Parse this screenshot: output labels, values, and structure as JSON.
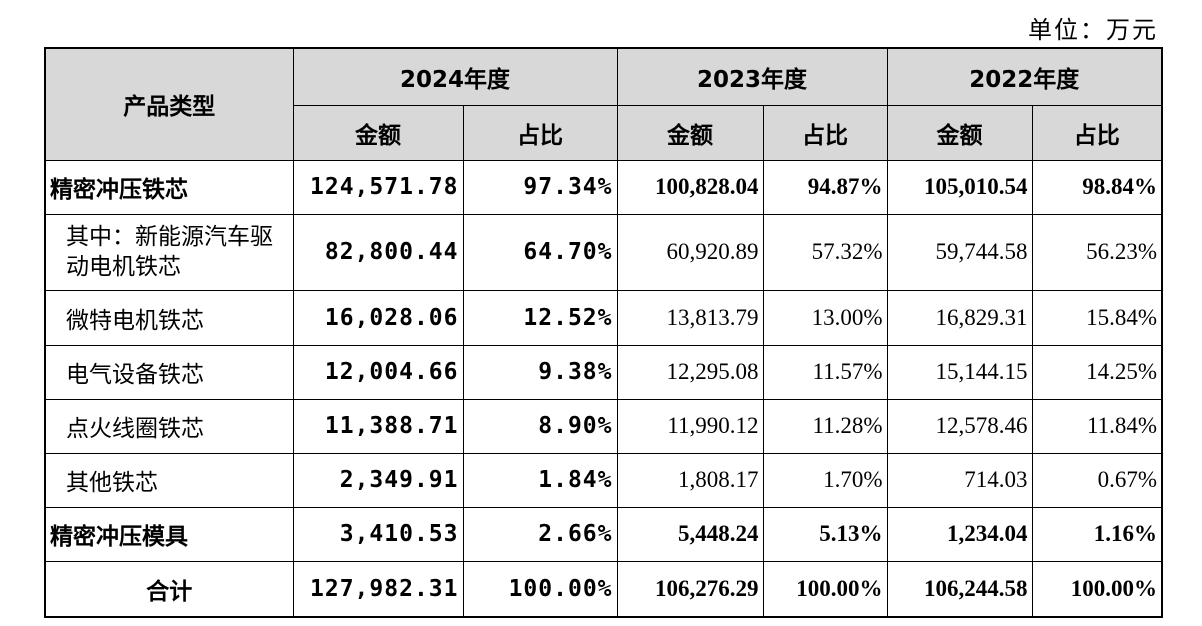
{
  "unit_label": "单位：万元",
  "header": {
    "product_type": "产品类型",
    "years": [
      "2024年度",
      "2023年度",
      "2022年度"
    ],
    "amount": "金额",
    "ratio": "占比"
  },
  "rows": [
    {
      "name": "精密冲压铁芯",
      "y2024_amount": "124,571.78",
      "y2024_ratio": "97.34%",
      "y2023_amount": "100,828.04",
      "y2023_ratio": "94.87%",
      "y2022_amount": "105,010.54",
      "y2022_ratio": "98.84%"
    },
    {
      "name": "其中：新能源汽车驱动电机铁芯",
      "y2024_amount": "82,800.44",
      "y2024_ratio": "64.70%",
      "y2023_amount": "60,920.89",
      "y2023_ratio": "57.32%",
      "y2022_amount": "59,744.58",
      "y2022_ratio": "56.23%"
    },
    {
      "name": "微特电机铁芯",
      "y2024_amount": "16,028.06",
      "y2024_ratio": "12.52%",
      "y2023_amount": "13,813.79",
      "y2023_ratio": "13.00%",
      "y2022_amount": "16,829.31",
      "y2022_ratio": "15.84%"
    },
    {
      "name": "电气设备铁芯",
      "y2024_amount": "12,004.66",
      "y2024_ratio": "9.38%",
      "y2023_amount": "12,295.08",
      "y2023_ratio": "11.57%",
      "y2022_amount": "15,144.15",
      "y2022_ratio": "14.25%"
    },
    {
      "name": "点火线圈铁芯",
      "y2024_amount": "11,388.71",
      "y2024_ratio": "8.90%",
      "y2023_amount": "11,990.12",
      "y2023_ratio": "11.28%",
      "y2022_amount": "12,578.46",
      "y2022_ratio": "11.84%"
    },
    {
      "name": "其他铁芯",
      "y2024_amount": "2,349.91",
      "y2024_ratio": "1.84%",
      "y2023_amount": "1,808.17",
      "y2023_ratio": "1.70%",
      "y2022_amount": "714.03",
      "y2022_ratio": "0.67%"
    },
    {
      "name": "精密冲压模具",
      "y2024_amount": "3,410.53",
      "y2024_ratio": "2.66%",
      "y2023_amount": "5,448.24",
      "y2023_ratio": "5.13%",
      "y2022_amount": "1,234.04",
      "y2022_ratio": "1.16%"
    },
    {
      "name": "合计",
      "y2024_amount": "127,982.31",
      "y2024_ratio": "100.00%",
      "y2023_amount": "106,276.29",
      "y2023_ratio": "100.00%",
      "y2022_amount": "106,244.58",
      "y2022_ratio": "100.00%"
    }
  ]
}
